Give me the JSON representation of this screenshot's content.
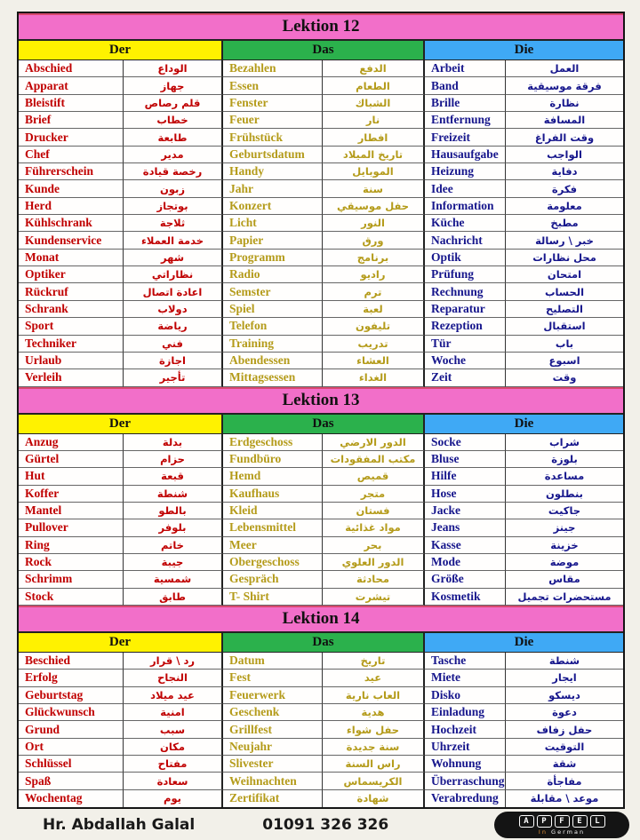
{
  "colors": {
    "pink": "#f26fc9",
    "yellow": "#fff200",
    "green": "#2bb14c",
    "blue": "#3fa9f5",
    "der_text": "#c00000",
    "das_text": "#b49b1a",
    "die_text": "#16168c"
  },
  "sections": [
    {
      "title": "Lektion 12",
      "columns": [
        {
          "gender": "Der",
          "entries": [
            [
              "Abschied",
              "الوداع"
            ],
            [
              "Apparat",
              "جهاز"
            ],
            [
              "Bleistift",
              "قلم رصاص"
            ],
            [
              "Brief",
              "خطاب"
            ],
            [
              "Drucker",
              "طابعة"
            ],
            [
              "Chef",
              "مدير"
            ],
            [
              "Führerschein",
              "رخصة قيادة"
            ],
            [
              "Kunde",
              "زبون"
            ],
            [
              "Herd",
              "بوتجاز"
            ],
            [
              "Kühlschrank",
              "ثلاجة"
            ],
            [
              "Kundenservice",
              "خدمة العملاء"
            ],
            [
              "Monat",
              "شهر"
            ],
            [
              "Optiker",
              "نظاراتي"
            ],
            [
              "Rückruf",
              "اعادة اتصال"
            ],
            [
              "Schrank",
              "دولاب"
            ],
            [
              "Sport",
              "رياضة"
            ],
            [
              "Techniker",
              "فني"
            ],
            [
              "Urlaub",
              "اجازة"
            ],
            [
              "Verleih",
              "تأجير"
            ]
          ]
        },
        {
          "gender": "Das",
          "entries": [
            [
              "Bezahlen",
              "الدفع"
            ],
            [
              "Essen",
              "الطعام"
            ],
            [
              "Fenster",
              "الشباك"
            ],
            [
              "Feuer",
              "نار"
            ],
            [
              "Frühstück",
              "افطار"
            ],
            [
              "Geburtsdatum",
              "تاريخ الميلاد"
            ],
            [
              "Handy",
              "الموبايل"
            ],
            [
              "Jahr",
              "سنة"
            ],
            [
              "Konzert",
              "حفل موسيقي"
            ],
            [
              "Licht",
              "النور"
            ],
            [
              "Papier",
              "ورق"
            ],
            [
              "Programm",
              "برنامج"
            ],
            [
              "Radio",
              "راديو"
            ],
            [
              "Semster",
              "ترم"
            ],
            [
              "Spiel",
              "لعبة"
            ],
            [
              "Telefon",
              "تليفون"
            ],
            [
              "Training",
              "تدريب"
            ],
            [
              "Abendessen",
              "العشاء"
            ],
            [
              "Mittagsessen",
              "الغداء"
            ]
          ]
        },
        {
          "gender": "Die",
          "entries": [
            [
              "Arbeit",
              "العمل"
            ],
            [
              "Band",
              "فرقة موسيقية"
            ],
            [
              "Brille",
              "نظارة"
            ],
            [
              "Entfernung",
              "المسافة"
            ],
            [
              "Freizeit",
              "وقت الفراغ"
            ],
            [
              "Hausaufgabe",
              "الواجب"
            ],
            [
              "Heizung",
              "دفاية"
            ],
            [
              "Idee",
              "فكرة"
            ],
            [
              "Information",
              "معلومة"
            ],
            [
              "Küche",
              "مطبخ"
            ],
            [
              "Nachricht",
              "خبر \\ رسالة"
            ],
            [
              "Optik",
              "محل نظارات"
            ],
            [
              "Prüfung",
              "امتحان"
            ],
            [
              "Rechnung",
              "الحساب"
            ],
            [
              "Reparatur",
              "التصليح"
            ],
            [
              "Rezeption",
              "استقبال"
            ],
            [
              "Tür",
              "باب"
            ],
            [
              "Woche",
              "اسبوع"
            ],
            [
              "Zeit",
              "وقت"
            ]
          ]
        }
      ]
    },
    {
      "title": "Lektion 13",
      "columns": [
        {
          "gender": "Der",
          "entries": [
            [
              "Anzug",
              "بدلة"
            ],
            [
              "Gürtel",
              "حزام"
            ],
            [
              "Hut",
              "قبعة"
            ],
            [
              "Koffer",
              "شنطة"
            ],
            [
              "Mantel",
              "بالطو"
            ],
            [
              "Pullover",
              "بلوفر"
            ],
            [
              "Ring",
              "خاتم"
            ],
            [
              "Rock",
              "جيبة"
            ],
            [
              "Schrimm",
              "شمسية"
            ],
            [
              "Stock",
              "طابق"
            ]
          ]
        },
        {
          "gender": "Das",
          "entries": [
            [
              "Erdgeschoss",
              "الدور الارضي"
            ],
            [
              "Fundbüro",
              "مكتب المفقودات"
            ],
            [
              "Hemd",
              "قميص"
            ],
            [
              "Kaufhaus",
              "متجر"
            ],
            [
              "Kleid",
              "فستان"
            ],
            [
              "Lebensmittel",
              "مواد غذائية"
            ],
            [
              "Meer",
              "بحر"
            ],
            [
              "Obergeschoss",
              "الدور العلوي"
            ],
            [
              "Gespräch",
              "محادثة"
            ],
            [
              "T- Shirt",
              "تيشرت"
            ]
          ]
        },
        {
          "gender": "Die",
          "entries": [
            [
              "Socke",
              "شراب"
            ],
            [
              "Bluse",
              "بلوزة"
            ],
            [
              "Hilfe",
              "مساعدة"
            ],
            [
              "Hose",
              "بنطلون"
            ],
            [
              "Jacke",
              "جاكيت"
            ],
            [
              "Jeans",
              "جينز"
            ],
            [
              "Kasse",
              "خزينة"
            ],
            [
              "Mode",
              "موضة"
            ],
            [
              "Größe",
              "مقاس"
            ],
            [
              "Kosmetik",
              "مستحضرات تجميل"
            ]
          ]
        }
      ]
    },
    {
      "title": "Lektion 14",
      "columns": [
        {
          "gender": "Der",
          "entries": [
            [
              "Beschied",
              "رد \\ قرار"
            ],
            [
              "Erfolg",
              "النجاح"
            ],
            [
              "Geburtstag",
              "عيد ميلاد"
            ],
            [
              "Glückwunsch",
              "امنية"
            ],
            [
              "Grund",
              "سبب"
            ],
            [
              "Ort",
              "مكان"
            ],
            [
              "Schlüssel",
              "مفتاح"
            ],
            [
              "Spaß",
              "سعادة"
            ],
            [
              "Wochentag",
              "يوم"
            ]
          ]
        },
        {
          "gender": "Das",
          "entries": [
            [
              "Datum",
              "تاريخ"
            ],
            [
              "Fest",
              "عيد"
            ],
            [
              "Feuerwerk",
              "العاب نارية"
            ],
            [
              "Geschenk",
              "هدية"
            ],
            [
              "Grillfest",
              "حفل شواء"
            ],
            [
              "Neujahr",
              "سنة جديدة"
            ],
            [
              "Slivester",
              "راس السنة"
            ],
            [
              "Weihnachten",
              "الكريسماس"
            ],
            [
              "Zertifikat",
              "شهادة"
            ]
          ]
        },
        {
          "gender": "Die",
          "entries": [
            [
              "Tasche",
              "شنطة"
            ],
            [
              "Miete",
              "ايجار"
            ],
            [
              "Disko",
              "ديسكو"
            ],
            [
              "Einladung",
              "دعوة"
            ],
            [
              "Hochzeit",
              "حفل زفاف"
            ],
            [
              "Uhrzeit",
              "التوقيت"
            ],
            [
              "Wohnung",
              "شقة"
            ],
            [
              "Überraschung",
              "مفاجأة"
            ],
            [
              "Verabredung",
              "موعد \\ مقابلة"
            ]
          ]
        }
      ]
    }
  ],
  "footer": {
    "teacher": "Hr. Abdallah Galal",
    "phone": "01091 326 326",
    "logo_letters": [
      "A",
      "P",
      "F",
      "E",
      "L"
    ],
    "logo_sub_in": "In",
    "logo_sub_german": "German"
  }
}
